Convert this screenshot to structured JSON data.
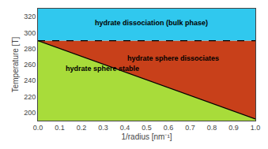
{
  "chart_data": {
    "type": "area",
    "title": "",
    "xlabel": "1/radius [nm⁻¹]",
    "ylabel": "Temperature [T]",
    "xlim": [
      0.0,
      1.0
    ],
    "ylim": [
      190,
      330
    ],
    "xticks": [
      {
        "value": 0.0,
        "label": "0.0"
      },
      0.1,
      0.2,
      0.3,
      0.4,
      0.5,
      0.6,
      0.7,
      0.8,
      0.9,
      {
        "value": 1.0,
        "label": "1.0"
      }
    ],
    "yticks": [
      200,
      220,
      240,
      260,
      280,
      300,
      320
    ],
    "grid": false,
    "series": [
      {
        "type": "area",
        "x": [
          0.0,
          1.0
        ],
        "values": [
          290,
          192
        ],
        "color": "#A8DC3A"
      },
      {
        "type": "area",
        "x": [
          0.0,
          1.0
        ],
        "values": [
          290,
          290
        ],
        "color": "#C8401A"
      },
      {
        "type": "area",
        "x": [
          0.0,
          1.0
        ],
        "values": [
          330,
          330
        ],
        "color": "#30C8EE"
      },
      {
        "type": "line",
        "x": [
          0.0,
          1.0
        ],
        "values": [
          290,
          192
        ],
        "color": "black",
        "line_style": "solid"
      },
      {
        "type": "line",
        "x": [
          0.0,
          1.0
        ],
        "values": [
          290,
          290
        ],
        "color": "black",
        "line_style": "dashed"
      }
    ],
    "annotations": [
      {
        "text": "hydrate dissociation (bulk phase)",
        "x": 0.52,
        "y": 312
      },
      {
        "text": "hydrate sphere dissociates",
        "x": 0.62,
        "y": 268
      },
      {
        "text": "hydrate sphere stable",
        "x": 0.12,
        "y": 255
      }
    ]
  }
}
